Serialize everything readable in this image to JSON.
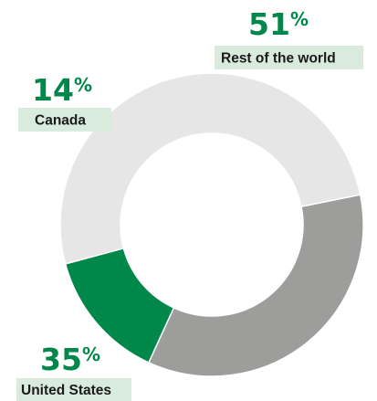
{
  "chart_data": {
    "type": "pie",
    "donut": true,
    "slices": [
      {
        "label": "Rest of the world",
        "value": 51,
        "value_label": "51",
        "unit": "%",
        "color": "#e6e6e6"
      },
      {
        "label": "United States",
        "value": 35,
        "value_label": "35",
        "unit": "%",
        "color": "#9d9d9b"
      },
      {
        "label": "Canada",
        "value": 14,
        "value_label": "14",
        "unit": "%",
        "color": "#00874a"
      }
    ],
    "colors": {
      "value_text": "#00874a",
      "label_background": "#d8ebdd",
      "label_text": "#1a1a1a"
    }
  }
}
